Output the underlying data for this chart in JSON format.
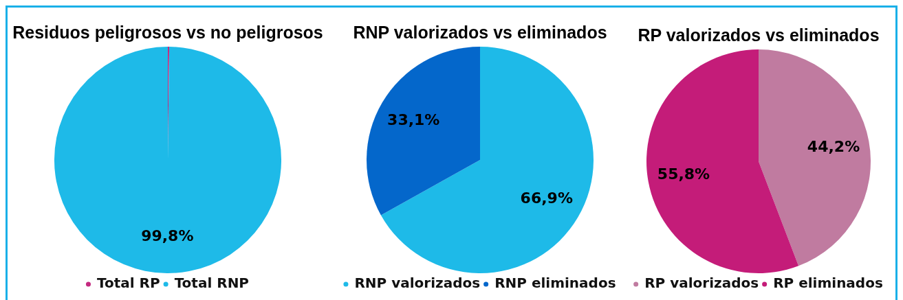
{
  "chart_data": [
    {
      "type": "pie",
      "title": "Residuos peligrosos vs no peligrosos",
      "categories": [
        "Total RP",
        "Total RNP"
      ],
      "values": [
        0.2,
        99.8
      ],
      "colors": [
        "#c42a80",
        "#1ebae8"
      ],
      "value_labels": [
        null,
        "99,8%"
      ],
      "legend": "bottom"
    },
    {
      "type": "pie",
      "title": "RNP valorizados vs eliminados",
      "categories": [
        "RNP valorizados",
        "RNP eliminados"
      ],
      "values": [
        66.9,
        33.1
      ],
      "colors": [
        "#1ebae8",
        "#0467cb"
      ],
      "value_labels": [
        "66,9%",
        "33,1%"
      ],
      "legend": "bottom"
    },
    {
      "type": "pie",
      "title": "RP valorizados vs eliminados",
      "categories": [
        "RP valorizados",
        "RP eliminados"
      ],
      "values": [
        44.2,
        55.8
      ],
      "colors": [
        "#c07ba0",
        "#c41c79"
      ],
      "value_labels": [
        "44,2%",
        "55,8%"
      ],
      "legend": "bottom"
    }
  ]
}
